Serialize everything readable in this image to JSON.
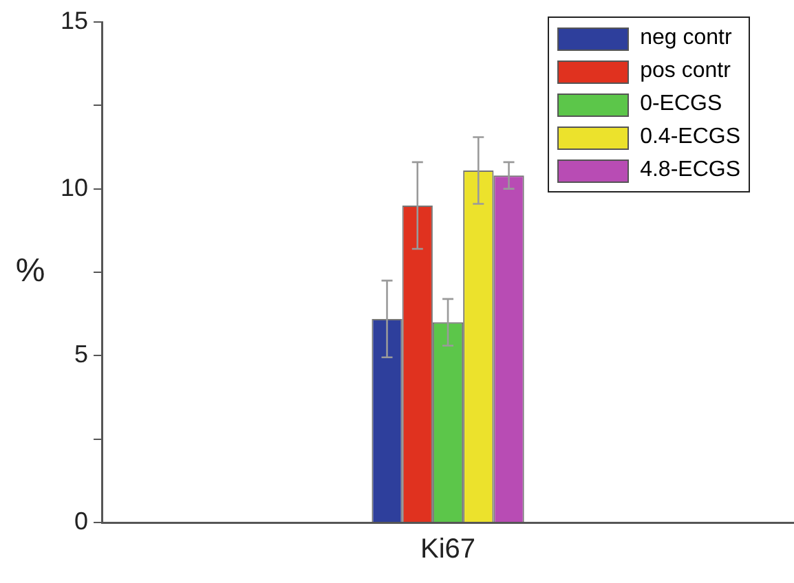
{
  "chart_data": {
    "type": "bar",
    "ylabel": "%",
    "categories": [
      "Ki67"
    ],
    "series": [
      {
        "name": "neg contr",
        "color": "#2e3f9c",
        "values": [
          6.1
        ],
        "errors": [
          1.15
        ]
      },
      {
        "name": "pos contr",
        "color": "#e0321f",
        "values": [
          9.5
        ],
        "errors": [
          1.3
        ]
      },
      {
        "name": "0-ECGS",
        "color": "#5cc64a",
        "values": [
          6.0
        ],
        "errors": [
          0.7
        ]
      },
      {
        "name": "0.4-ECGS",
        "color": "#ece22c",
        "values": [
          10.55
        ],
        "errors": [
          1.0
        ]
      },
      {
        "name": "4.8-ECGS",
        "color": "#b84cb4",
        "values": [
          10.4
        ],
        "errors": [
          0.4
        ]
      }
    ],
    "ylim": [
      0,
      15
    ],
    "yticks": [
      0,
      {
        "value": 2.5,
        "label": null
      },
      5,
      {
        "value": 7.5,
        "label": null
      },
      10,
      {
        "value": 12.5,
        "label": null
      },
      15
    ],
    "grid": false,
    "legend": "top right"
  }
}
